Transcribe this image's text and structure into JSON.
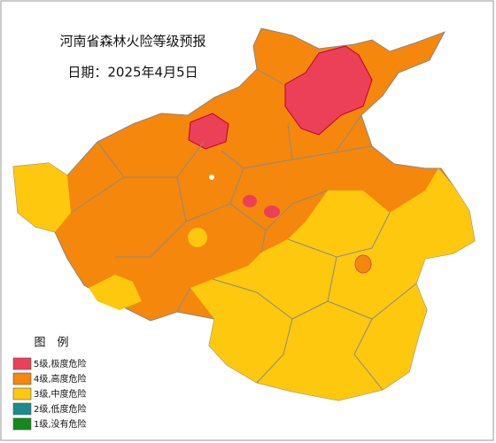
{
  "title": "河南省森林火险等级预报",
  "date": "日期：2025年4月5日",
  "legend": {
    "title": "图　例",
    "items": [
      {
        "label": "5级,极度危险",
        "color": "#ec4058"
      },
      {
        "label": "4级,高度危险",
        "color": "#f5870c"
      },
      {
        "label": "3级,中度危险",
        "color": "#fdc80e"
      },
      {
        "label": "2级,低度危险",
        "color": "#1d8a8e"
      },
      {
        "label": "1级,没有危险",
        "color": "#138a1a"
      }
    ]
  }
}
